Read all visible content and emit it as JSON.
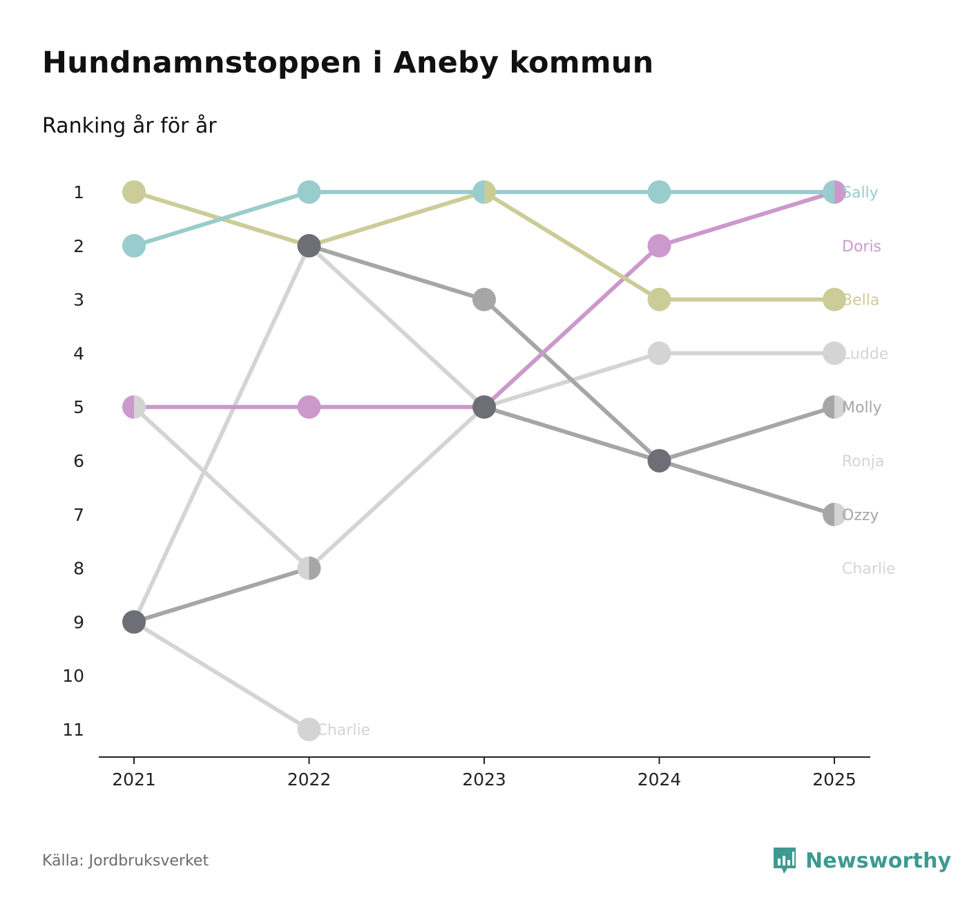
{
  "title": "Hundnamnstoppen i Aneby kommun",
  "subtitle": "Ranking år för år",
  "source": "Källa: Jordbruksverket",
  "brand": {
    "name": "Newsworthy",
    "color": "#3d9a90",
    "icon": "bar-chart-speech-icon"
  },
  "chart_data": {
    "type": "line",
    "subtype": "bump",
    "title": "Hundnamnstoppen i Aneby kommun",
    "subtitle": "Ranking år för år",
    "xlabel": "",
    "ylabel": "",
    "x": [
      "2021",
      "2022",
      "2023",
      "2024",
      "2025"
    ],
    "y_ticks": [
      "1",
      "2",
      "3",
      "4",
      "5",
      "6",
      "7",
      "8",
      "9",
      "10",
      "11"
    ],
    "ylim": [
      1,
      11
    ],
    "y_inverted": true,
    "series": [
      {
        "name": "Charlie",
        "label": "Charlie",
        "color": "#d4d4d4",
        "values": [
          9,
          11,
          null,
          null,
          null
        ]
      },
      {
        "name": "Ronja",
        "label": "Ronja",
        "color": "#d4d4d4",
        "values": [
          9,
          2,
          5,
          6,
          null
        ]
      },
      {
        "name": "Ludde",
        "label": "Ludde",
        "color": "#d4d4d4",
        "values": [
          5,
          8,
          5,
          4,
          4
        ]
      },
      {
        "name": "Ozzy",
        "label": "Ozzy",
        "color": "#a6a6a6",
        "values": [
          9,
          8,
          null,
          null,
          null
        ]
      },
      {
        "name": "Molly",
        "label": "Molly",
        "color": "#a6a6a6",
        "values": [
          null,
          2,
          3,
          6,
          5
        ]
      },
      {
        "name": "Ozzy-2",
        "label": "Ozzy",
        "color": "#a6a6a6",
        "values": [
          null,
          null,
          5,
          6,
          7
        ]
      },
      {
        "name": "Doris",
        "label": "Doris",
        "color": "#cc99cc",
        "values": [
          5,
          5,
          5,
          2,
          1
        ]
      },
      {
        "name": "Bella",
        "label": "Bella",
        "color": "#cccc99",
        "values": [
          1,
          2,
          1,
          3,
          3
        ]
      },
      {
        "name": "Sally",
        "label": "Sally",
        "color": "#99cccc",
        "values": [
          2,
          1,
          1,
          1,
          1
        ]
      }
    ],
    "end_labels": [
      {
        "text": "Sally",
        "rank": 1,
        "color": "#99cccc"
      },
      {
        "text": "Doris",
        "rank": 2,
        "color": "#cc99cc"
      },
      {
        "text": "Bella",
        "rank": 3,
        "color": "#cccc99"
      },
      {
        "text": "Ludde",
        "rank": 4,
        "color": "#d4d4d4"
      },
      {
        "text": "Molly",
        "rank": 5,
        "color": "#a6a6a6"
      },
      {
        "text": "Ronja",
        "rank": 6,
        "color": "#d4d4d4"
      },
      {
        "text": "Ozzy",
        "rank": 7,
        "color": "#a6a6a6"
      },
      {
        "text": "Charlie",
        "rank": 8,
        "color": "#d4d4d4"
      }
    ],
    "annotations": [
      {
        "text": "Charlie",
        "x": "2022",
        "rank": 11,
        "color": "#d4d4d4"
      }
    ],
    "markers": [
      {
        "x": "2021",
        "rank": 1,
        "colors": [
          "#cccc99"
        ]
      },
      {
        "x": "2021",
        "rank": 2,
        "colors": [
          "#99cccc"
        ]
      },
      {
        "x": "2021",
        "rank": 5,
        "colors": [
          "#cc99cc",
          "#d4d4d4"
        ]
      },
      {
        "x": "2021",
        "rank": 9,
        "colors": [
          "#6e6e76"
        ]
      },
      {
        "x": "2022",
        "rank": 1,
        "colors": [
          "#99cccc"
        ]
      },
      {
        "x": "2022",
        "rank": 2,
        "colors": [
          "#6e6e76"
        ]
      },
      {
        "x": "2022",
        "rank": 5,
        "colors": [
          "#cc99cc"
        ]
      },
      {
        "x": "2022",
        "rank": 8,
        "colors": [
          "#d4d4d4",
          "#a6a6a6"
        ]
      },
      {
        "x": "2022",
        "rank": 11,
        "colors": [
          "#d4d4d4"
        ]
      },
      {
        "x": "2023",
        "rank": 1,
        "colors": [
          "#99cccc",
          "#cccc99"
        ]
      },
      {
        "x": "2023",
        "rank": 3,
        "colors": [
          "#a6a6a6"
        ]
      },
      {
        "x": "2023",
        "rank": 5,
        "colors": [
          "#6e6e76"
        ]
      },
      {
        "x": "2024",
        "rank": 1,
        "colors": [
          "#99cccc"
        ]
      },
      {
        "x": "2024",
        "rank": 2,
        "colors": [
          "#cc99cc"
        ]
      },
      {
        "x": "2024",
        "rank": 3,
        "colors": [
          "#cccc99"
        ]
      },
      {
        "x": "2024",
        "rank": 4,
        "colors": [
          "#d4d4d4"
        ]
      },
      {
        "x": "2024",
        "rank": 6,
        "colors": [
          "#6e6e76"
        ]
      },
      {
        "x": "2025",
        "rank": 1,
        "colors": [
          "#99cccc",
          "#cc99cc"
        ]
      },
      {
        "x": "2025",
        "rank": 3,
        "colors": [
          "#cccc99"
        ]
      },
      {
        "x": "2025",
        "rank": 4,
        "colors": [
          "#d4d4d4"
        ]
      },
      {
        "x": "2025",
        "rank": 5,
        "colors": [
          "#a6a6a6",
          "#d4d4d4"
        ]
      },
      {
        "x": "2025",
        "rank": 7,
        "colors": [
          "#a6a6a6",
          "#d4d4d4"
        ]
      }
    ]
  }
}
